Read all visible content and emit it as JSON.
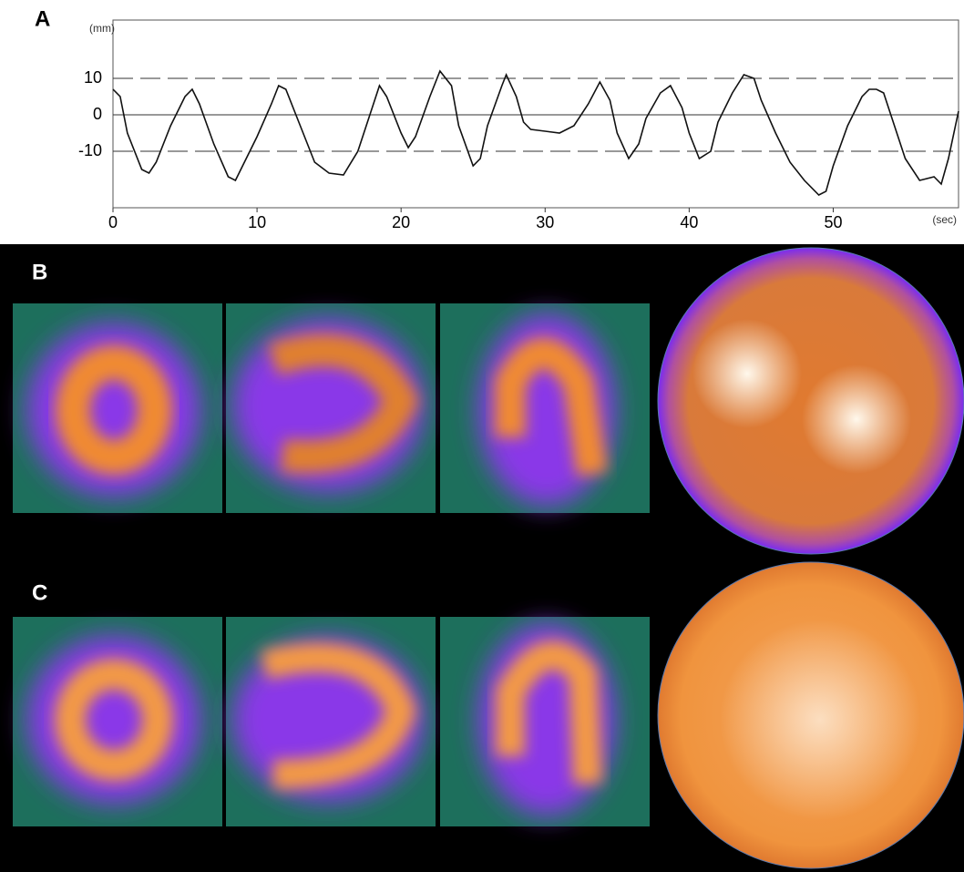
{
  "panel_labels": [
    "A",
    "B",
    "C"
  ],
  "chart_data": {
    "type": "line",
    "y_label": "(mm)",
    "x_label": "(sec)",
    "xlim": [
      0,
      58.7
    ],
    "xticks": [
      0,
      10,
      20,
      30,
      40,
      50
    ],
    "ylim": [
      -25.5,
      26
    ],
    "yticks": [
      10,
      0,
      -10
    ],
    "grid": true,
    "color": "#111111",
    "x": [
      0,
      0.5,
      1,
      2,
      2.5,
      3,
      4,
      5,
      5.5,
      6,
      7,
      8,
      8.5,
      9,
      10,
      11,
      11.5,
      12,
      13,
      14,
      15,
      16,
      17,
      18,
      18.5,
      19,
      20,
      20.5,
      21,
      22,
      22.7,
      23.5,
      24,
      25,
      25.5,
      26,
      27,
      27.3,
      28,
      28.5,
      29,
      30,
      31,
      32,
      33,
      33.8,
      34.5,
      35,
      35.8,
      36.5,
      37,
      38,
      38.7,
      39.5,
      40,
      40.7,
      41.5,
      42,
      43,
      43.8,
      44.5,
      45,
      46,
      47,
      48,
      49,
      49.5,
      50,
      51,
      52,
      52.5,
      53,
      53.5,
      54,
      55,
      56,
      57,
      57.5,
      58,
      58.7
    ],
    "values": [
      7,
      5,
      -5,
      -15,
      -16,
      -13,
      -3,
      5,
      7,
      3,
      -8,
      -17,
      -18,
      -14,
      -6,
      3,
      8,
      7,
      -3,
      -13,
      -16,
      -16.5,
      -10,
      2,
      8,
      5,
      -5,
      -9,
      -6,
      5,
      12,
      8,
      -3,
      -14,
      -12,
      -3,
      8,
      11,
      5,
      -2,
      -4,
      -4.5,
      -5,
      -3,
      3,
      9,
      4,
      -5,
      -12,
      -8,
      -1,
      6,
      8,
      2,
      -5,
      -12,
      -10,
      -2,
      6,
      11,
      10,
      4,
      -5,
      -13,
      -18,
      -22,
      -21,
      -14,
      -3,
      5,
      7,
      7,
      6,
      0,
      -12,
      -18,
      -17,
      -19,
      -12,
      1
    ]
  }
}
